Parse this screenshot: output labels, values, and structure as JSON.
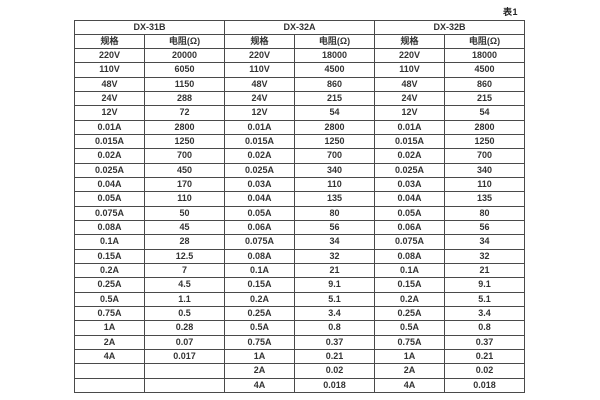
{
  "page": {
    "table_caption": "表1"
  },
  "table": {
    "groups": [
      {
        "name": "DX-31B",
        "spec_header": "规格",
        "resistance_header": "电阻(Ω)"
      },
      {
        "name": "DX-32A",
        "spec_header": "规格",
        "resistance_header": "电阻(Ω)"
      },
      {
        "name": "DX-32B",
        "spec_header": "规格",
        "resistance_header": "电阻(Ω)"
      }
    ],
    "rows": [
      [
        "220V",
        "20000",
        "220V",
        "18000",
        "220V",
        "18000"
      ],
      [
        "110V",
        "6050",
        "110V",
        "4500",
        "110V",
        "4500"
      ],
      [
        "48V",
        "1150",
        "48V",
        "860",
        "48V",
        "860"
      ],
      [
        "24V",
        "288",
        "24V",
        "215",
        "24V",
        "215"
      ],
      [
        "12V",
        "72",
        "12V",
        "54",
        "12V",
        "54"
      ],
      [
        "0.01A",
        "2800",
        "0.01A",
        "2800",
        "0.01A",
        "2800"
      ],
      [
        "0.015A",
        "1250",
        "0.015A",
        "1250",
        "0.015A",
        "1250"
      ],
      [
        "0.02A",
        "700",
        "0.02A",
        "700",
        "0.02A",
        "700"
      ],
      [
        "0.025A",
        "450",
        "0.025A",
        "340",
        "0.025A",
        "340"
      ],
      [
        "0.04A",
        "170",
        "0.03A",
        "110",
        "0.03A",
        "110"
      ],
      [
        "0.05A",
        "110",
        "0.04A",
        "135",
        "0.04A",
        "135"
      ],
      [
        "0.075A",
        "50",
        "0.05A",
        "80",
        "0.05A",
        "80"
      ],
      [
        "0.08A",
        "45",
        "0.06A",
        "56",
        "0.06A",
        "56"
      ],
      [
        "0.1A",
        "28",
        "0.075A",
        "34",
        "0.075A",
        "34"
      ],
      [
        "0.15A",
        "12.5",
        "0.08A",
        "32",
        "0.08A",
        "32"
      ],
      [
        "0.2A",
        "7",
        "0.1A",
        "21",
        "0.1A",
        "21"
      ],
      [
        "0.25A",
        "4.5",
        "0.15A",
        "9.1",
        "0.15A",
        "9.1"
      ],
      [
        "0.5A",
        "1.1",
        "0.2A",
        "5.1",
        "0.2A",
        "5.1"
      ],
      [
        "0.75A",
        "0.5",
        "0.25A",
        "3.4",
        "0.25A",
        "3.4"
      ],
      [
        "1A",
        "0.28",
        "0.5A",
        "0.8",
        "0.5A",
        "0.8"
      ],
      [
        "2A",
        "0.07",
        "0.75A",
        "0.37",
        "0.75A",
        "0.37"
      ],
      [
        "4A",
        "0.017",
        "1A",
        "0.21",
        "1A",
        "0.21"
      ],
      [
        "",
        "",
        "2A",
        "0.02",
        "2A",
        "0.02"
      ],
      [
        "",
        "",
        "4A",
        "0.018",
        "4A",
        "0.018"
      ]
    ]
  }
}
